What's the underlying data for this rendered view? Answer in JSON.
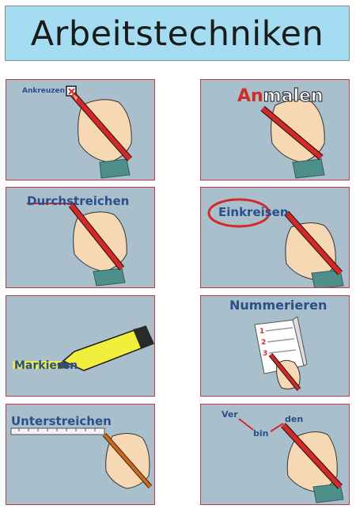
{
  "title": "Arbeitstechniken",
  "cards": [
    {
      "label": "Ankreuzen"
    },
    {
      "label_red": "An",
      "label_rest": "malen"
    },
    {
      "label": "Durchstreichen"
    },
    {
      "label": "Einkreisen"
    },
    {
      "label": "Markieren"
    },
    {
      "label": "Nummerieren",
      "list_numbers": [
        "1",
        "2",
        "3"
      ]
    },
    {
      "label": "Unterstreichen"
    },
    {
      "syllables": [
        "Ver",
        "bin",
        "den"
      ]
    }
  ],
  "colors": {
    "title_bg": "#a4dcf1",
    "card_bg": "#a9bfcb",
    "card_border": "#c0394d",
    "label_blue": "#2a4f8c",
    "pencil_red": "#d12a2a",
    "highlighter_yellow": "#f2ee3c",
    "sleeve_teal": "#4f8f8b",
    "skin": "#f6d9b4"
  }
}
